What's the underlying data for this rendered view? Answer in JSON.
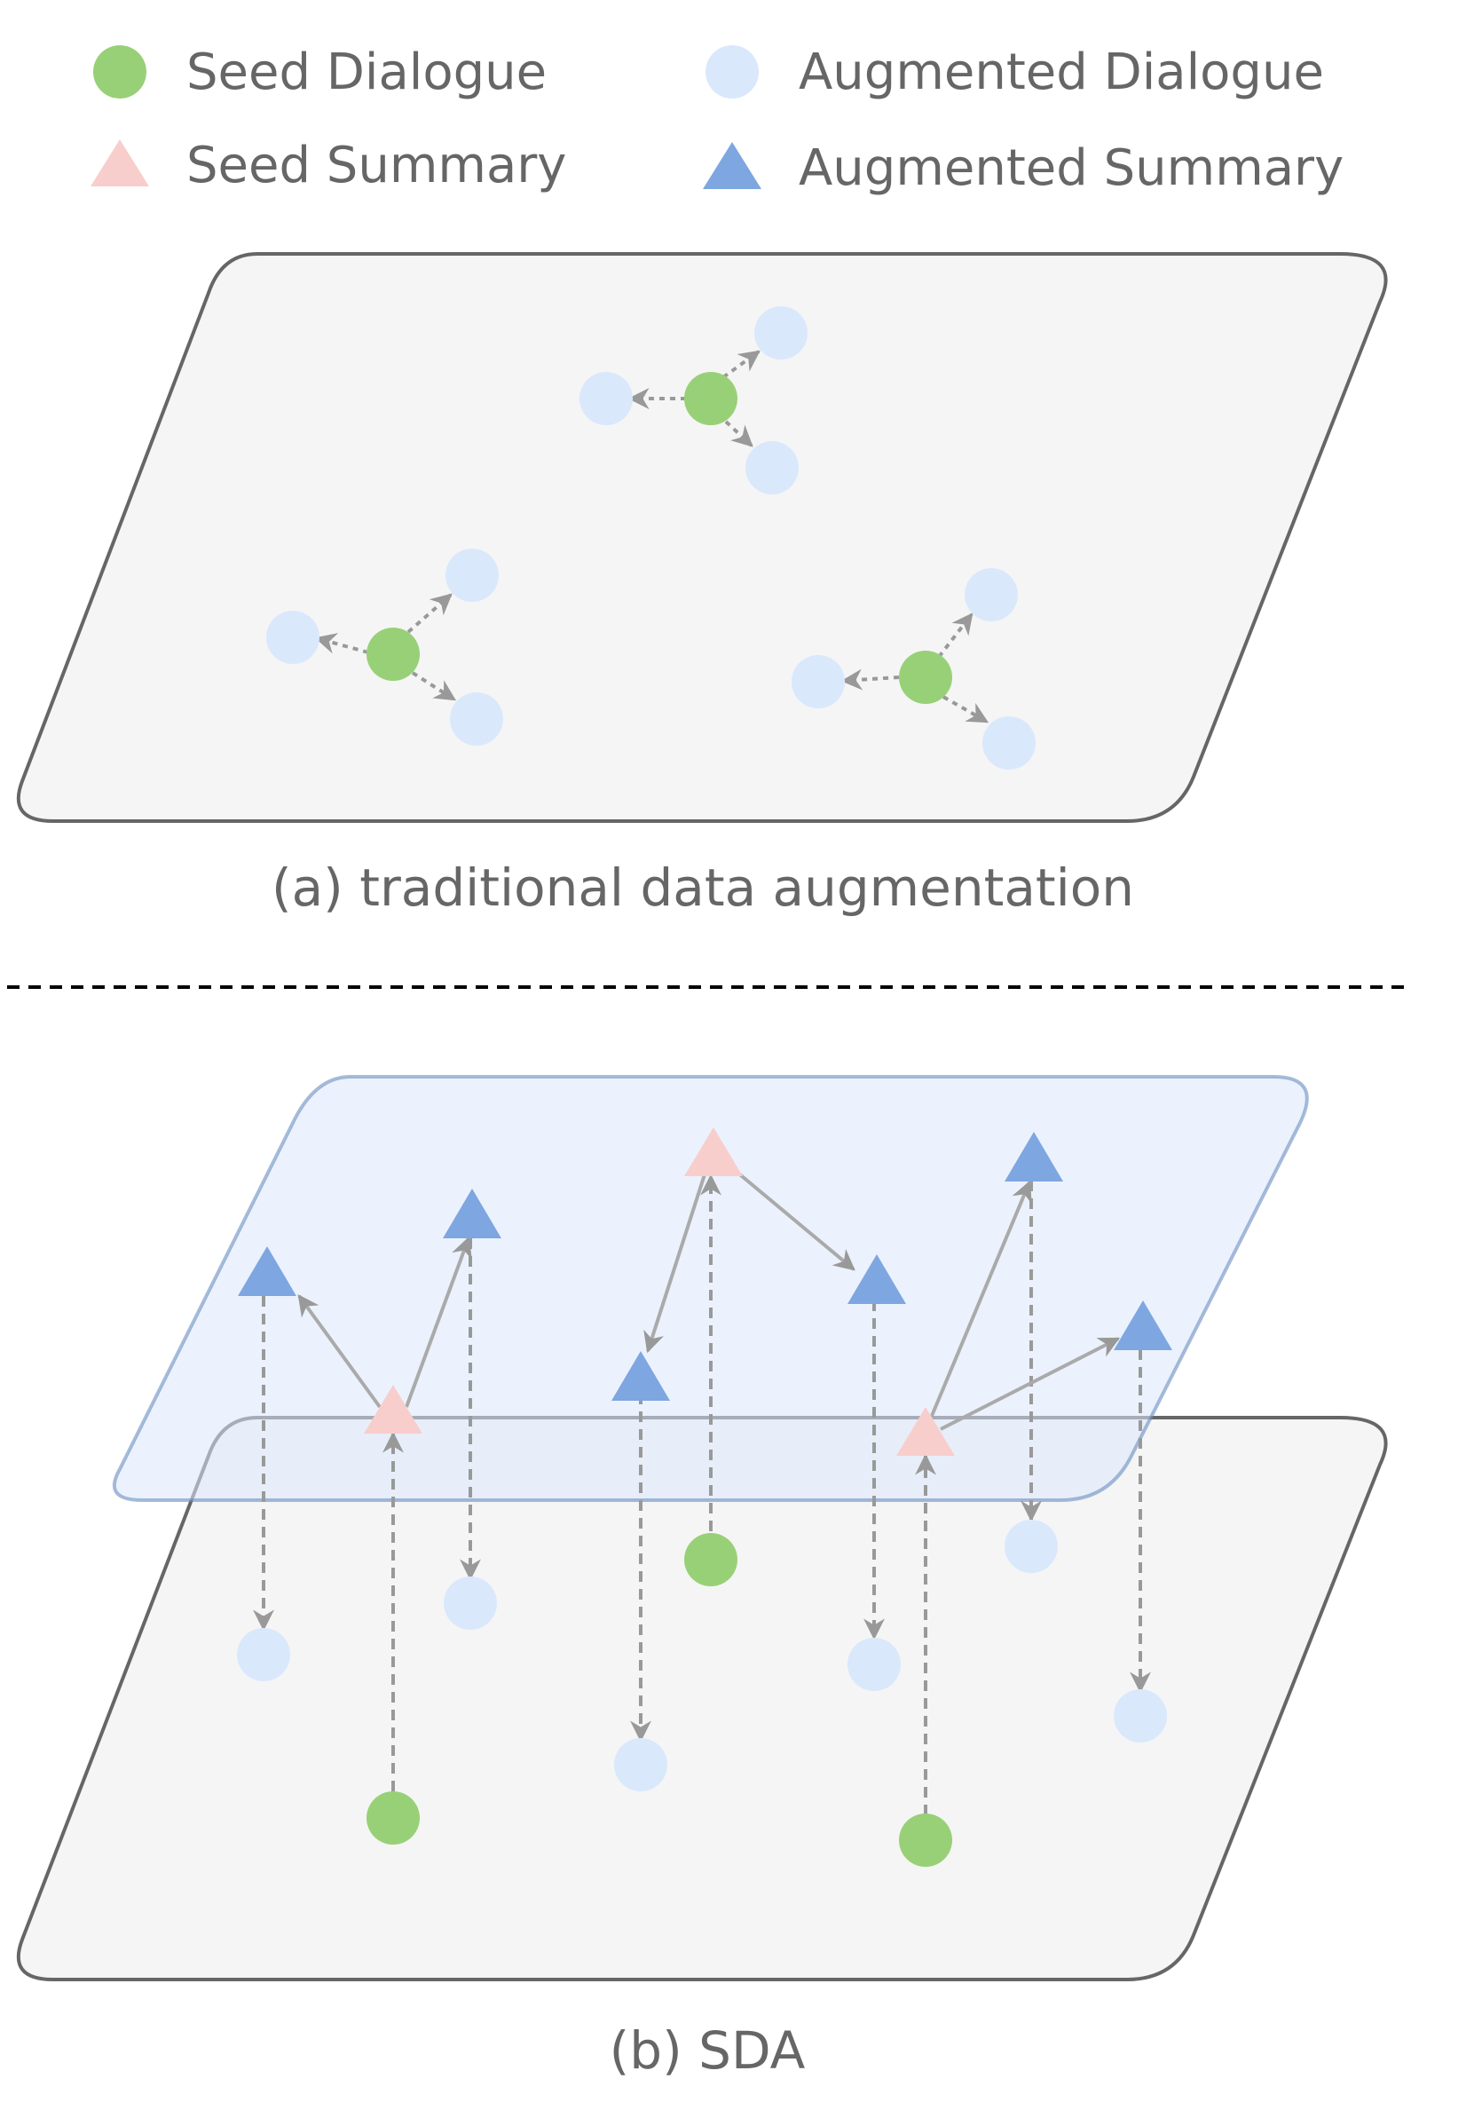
{
  "legend": {
    "seed_dialogue": "Seed Dialogue",
    "augmented_dialogue": "Augmented Dialogue",
    "seed_summary": "Seed Summary",
    "augmented_summary": "Augmented Summary"
  },
  "captions": {
    "a": "(a) traditional data augmentation",
    "b": "(b) SDA"
  },
  "colors": {
    "seed_dialogue": "#98d077",
    "augmented_dialogue": "#dae8fc",
    "seed_summary": "#f8cecc",
    "augmented_summary": "#7ea6e0",
    "plane_fill": "#f5f5f5",
    "plane_stroke": "#666666",
    "summary_plane_fill": "#dae8fc",
    "summary_plane_stroke": "#6c8ebf",
    "arrow": "#999999"
  }
}
